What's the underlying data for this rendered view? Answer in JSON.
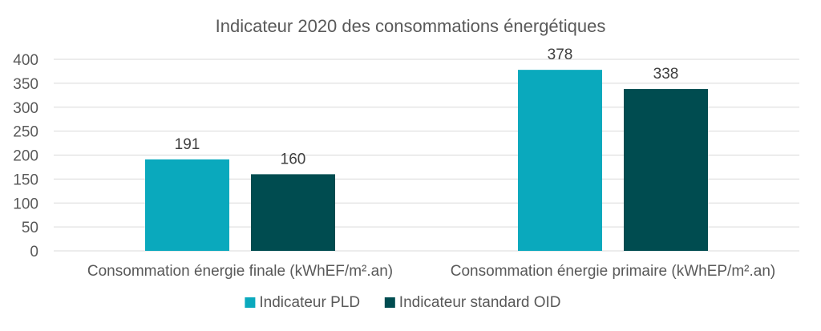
{
  "chart_data": {
    "type": "bar",
    "title": "Indicateur 2020 des consommations énergétiques",
    "categories": [
      "Consommation énergie finale (kWhEF/m².an)",
      "Consommation énergie primaire (kWhEP/m².an)"
    ],
    "series": [
      {
        "name": "Indicateur PLD",
        "values": [
          191,
          378
        ],
        "color": "#0aa9bd"
      },
      {
        "name": "Indicateur standard OID",
        "values": [
          160,
          338
        ],
        "color": "#004c50"
      }
    ],
    "ylim": [
      0,
      400
    ],
    "yticks": [
      0,
      50,
      100,
      150,
      200,
      250,
      300,
      350,
      400
    ],
    "grid": true,
    "legend_position": "bottom"
  }
}
